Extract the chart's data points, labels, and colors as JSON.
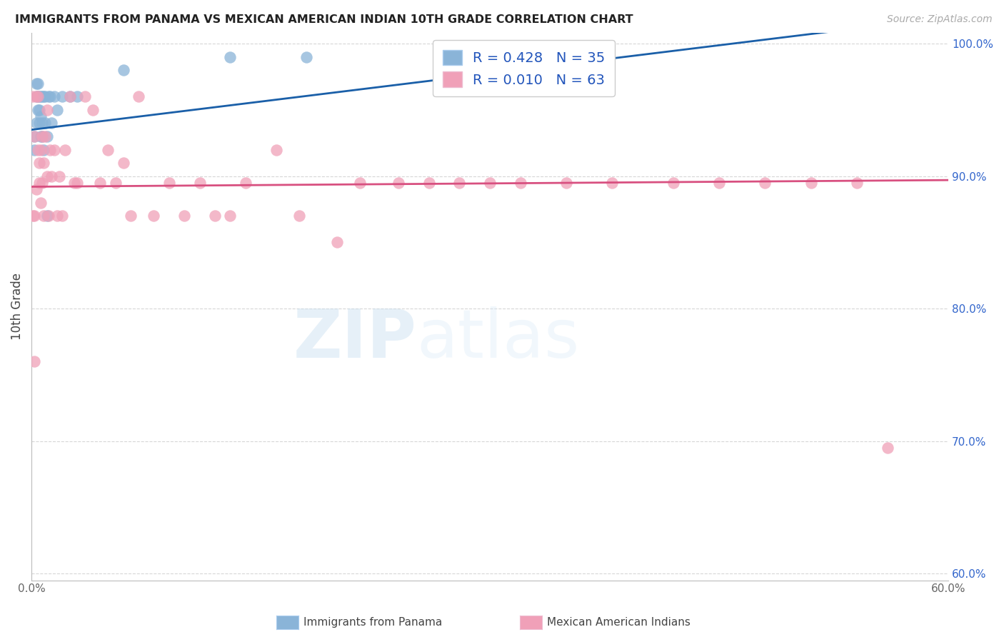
{
  "title": "IMMIGRANTS FROM PANAMA VS MEXICAN AMERICAN INDIAN 10TH GRADE CORRELATION CHART",
  "source": "Source: ZipAtlas.com",
  "ylabel_left": "10th Grade",
  "xlabel_legend1": "Immigrants from Panama",
  "xlabel_legend2": "Mexican American Indians",
  "R1": 0.428,
  "N1": 35,
  "R2": 0.01,
  "N2": 63,
  "xmin": 0.0,
  "xmax": 0.6,
  "ymin": 0.595,
  "ymax": 1.008,
  "x_ticks": [
    0.0,
    0.1,
    0.2,
    0.3,
    0.4,
    0.5,
    0.6
  ],
  "x_tick_labels": [
    "0.0%",
    "",
    "",
    "",
    "",
    "",
    "60.0%"
  ],
  "y_ticks_right": [
    0.6,
    0.7,
    0.8,
    0.9,
    1.0
  ],
  "y_tick_labels_right": [
    "60.0%",
    "70.0%",
    "80.0%",
    "90.0%",
    "100.0%"
  ],
  "color_blue": "#8ab4d8",
  "color_blue_line": "#1a5fa8",
  "color_pink": "#f0a0b8",
  "color_pink_line": "#d85080",
  "color_grid": "#cccccc",
  "watermark_zip": "ZIP",
  "watermark_atlas": "atlas",
  "blue_points_x": [
    0.002,
    0.002,
    0.003,
    0.003,
    0.003,
    0.004,
    0.004,
    0.004,
    0.005,
    0.005,
    0.005,
    0.006,
    0.006,
    0.006,
    0.007,
    0.007,
    0.007,
    0.008,
    0.008,
    0.009,
    0.009,
    0.01,
    0.01,
    0.011,
    0.012,
    0.013,
    0.015,
    0.017,
    0.02,
    0.025,
    0.03,
    0.06,
    0.13,
    0.18,
    0.28
  ],
  "blue_points_y": [
    0.93,
    0.92,
    0.94,
    0.96,
    0.97,
    0.95,
    0.96,
    0.97,
    0.94,
    0.95,
    0.96,
    0.93,
    0.945,
    0.96,
    0.93,
    0.94,
    0.96,
    0.92,
    0.96,
    0.94,
    0.96,
    0.87,
    0.93,
    0.96,
    0.96,
    0.94,
    0.96,
    0.95,
    0.96,
    0.96,
    0.96,
    0.98,
    0.99,
    0.99,
    0.99
  ],
  "pink_points_x": [
    0.001,
    0.001,
    0.002,
    0.002,
    0.002,
    0.003,
    0.003,
    0.004,
    0.004,
    0.005,
    0.005,
    0.006,
    0.006,
    0.007,
    0.007,
    0.008,
    0.008,
    0.009,
    0.01,
    0.01,
    0.011,
    0.012,
    0.013,
    0.015,
    0.017,
    0.018,
    0.02,
    0.022,
    0.025,
    0.028,
    0.03,
    0.035,
    0.04,
    0.045,
    0.05,
    0.055,
    0.06,
    0.065,
    0.07,
    0.08,
    0.09,
    0.1,
    0.11,
    0.12,
    0.13,
    0.14,
    0.16,
    0.175,
    0.2,
    0.215,
    0.24,
    0.26,
    0.28,
    0.3,
    0.32,
    0.35,
    0.38,
    0.42,
    0.45,
    0.48,
    0.51,
    0.54,
    0.56
  ],
  "pink_points_y": [
    0.87,
    0.96,
    0.76,
    0.87,
    0.93,
    0.96,
    0.89,
    0.92,
    0.96,
    0.91,
    0.895,
    0.88,
    0.92,
    0.895,
    0.93,
    0.91,
    0.87,
    0.93,
    0.9,
    0.95,
    0.87,
    0.92,
    0.9,
    0.92,
    0.87,
    0.9,
    0.87,
    0.92,
    0.96,
    0.895,
    0.895,
    0.96,
    0.95,
    0.895,
    0.92,
    0.895,
    0.91,
    0.87,
    0.96,
    0.87,
    0.895,
    0.87,
    0.895,
    0.87,
    0.87,
    0.895,
    0.92,
    0.87,
    0.85,
    0.895,
    0.895,
    0.895,
    0.895,
    0.895,
    0.895,
    0.895,
    0.895,
    0.895,
    0.895,
    0.895,
    0.895,
    0.895,
    0.695
  ]
}
